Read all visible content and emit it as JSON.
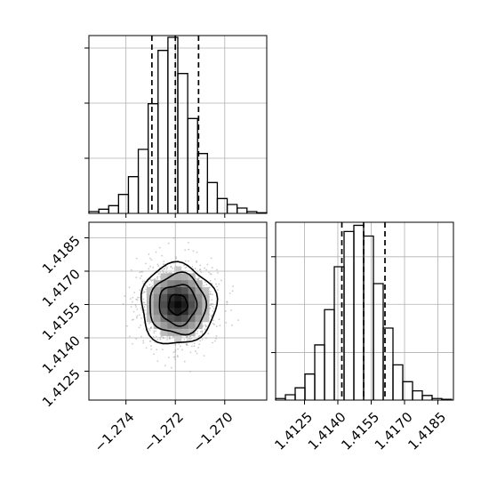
{
  "chart_data": {
    "type": "corner",
    "grid": true,
    "colors": {
      "line": "#000000",
      "grid": "#b0b0b0",
      "points": "#9a9a9a"
    },
    "parameters": [
      {
        "range": [
          -1.2755,
          -1.2683
        ],
        "ticks": [
          -1.274,
          -1.272,
          -1.27
        ],
        "tick_labels": [
          "−1.274",
          "−1.272",
          "−1.270"
        ]
      },
      {
        "range": [
          1.4112,
          1.4192
        ],
        "ticks": [
          1.4125,
          1.414,
          1.4155,
          1.417,
          1.4185
        ],
        "tick_labels": [
          "1.4125",
          "1.4140",
          "1.4155",
          "1.4170",
          "1.4185"
        ]
      }
    ],
    "histograms": [
      {
        "name": "param-0",
        "bin_edges": [
          -1.2755,
          -1.2751,
          -1.2747,
          -1.2743,
          -1.2739,
          -1.2735,
          -1.2731,
          -1.2727,
          -1.2723,
          -1.2719,
          -1.2715,
          -1.2711,
          -1.2707,
          -1.2703,
          -1.2699,
          -1.2695,
          -1.2691,
          -1.2687,
          -1.2683
        ],
        "counts": [
          3,
          7,
          13,
          32,
          62,
          108,
          185,
          275,
          297,
          236,
          160,
          101,
          52,
          25,
          15,
          9,
          3,
          1
        ],
        "ymax": 300,
        "quantile_lines": [
          -1.27295,
          -1.272,
          -1.27106
        ],
        "y_ticks": [
          93,
          186,
          279
        ]
      },
      {
        "name": "param-1",
        "bin_edges": [
          1.4112,
          1.41164,
          1.41208,
          1.41252,
          1.41296,
          1.4134,
          1.41384,
          1.41428,
          1.41472,
          1.41516,
          1.4156,
          1.41604,
          1.41648,
          1.41692,
          1.41736,
          1.4178,
          1.41824,
          1.41868,
          1.41912
        ],
        "counts": [
          2,
          7,
          16,
          34,
          72,
          118,
          174,
          220,
          228,
          214,
          152,
          94,
          46,
          24,
          12,
          6,
          2,
          1
        ],
        "ymax": 232,
        "quantile_lines": [
          1.41418,
          1.41516,
          1.41612
        ],
        "y_ticks": [
          62,
          125,
          187
        ]
      }
    ],
    "joint": {
      "x_param": 0,
      "y_param": 1,
      "center": [
        -1.2719,
        1.4155
      ],
      "sigma": [
        0.00076,
        0.00091
      ],
      "contour_levels": [
        0.5,
        1.0,
        1.5,
        2.0
      ],
      "point_count": 1400
    }
  }
}
